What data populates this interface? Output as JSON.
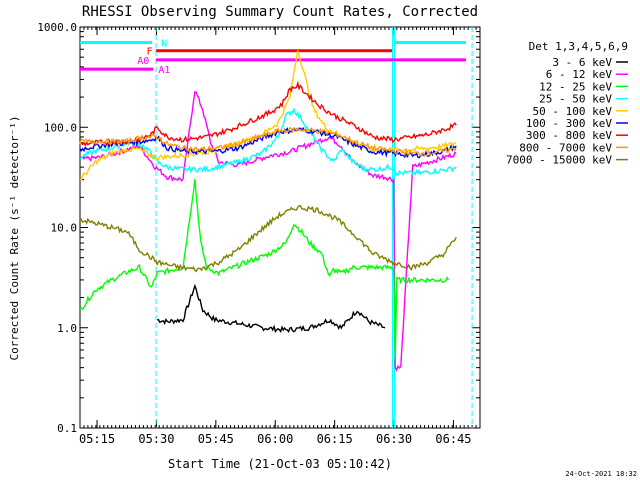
{
  "chart_data": {
    "type": "line",
    "title": "RHESSI Observing Summary Count Rates, Corrected",
    "xlabel": "Start Time (21-Oct-03 05:10:42)",
    "ylabel": "Corrected Count Rate (s⁻¹ detector⁻¹)",
    "y_scale": "log",
    "ylim": [
      0.1,
      1000
    ],
    "xlim_minutes_after_start": [
      0,
      101
    ],
    "x_ticks": [
      {
        "label": "05:15",
        "min": 4.3
      },
      {
        "label": "05:30",
        "min": 19.3
      },
      {
        "label": "05:45",
        "min": 34.3
      },
      {
        "label": "06:00",
        "min": 49.3
      },
      {
        "label": "06:15",
        "min": 64.3
      },
      {
        "label": "06:30",
        "min": 79.3
      },
      {
        "label": "06:45",
        "min": 94.3
      }
    ],
    "y_ticks": [
      {
        "label": "1000.0",
        "v": 1000
      },
      {
        "label": "100.0",
        "v": 100
      },
      {
        "label": "10.0",
        "v": 10
      },
      {
        "label": "1.0",
        "v": 1
      },
      {
        "label": "0.1",
        "v": 0.1
      }
    ],
    "legend_title": "Det 1,3,4,5,6,9",
    "series": [
      {
        "name": "3 - 6 keV",
        "color": "#000000",
        "points": [
          [
            19.5,
            1.2
          ],
          [
            22,
            1.15
          ],
          [
            26,
            1.2
          ],
          [
            29,
            2.6
          ],
          [
            31,
            1.5
          ],
          [
            34,
            1.2
          ],
          [
            40,
            1.1
          ],
          [
            46,
            1.0
          ],
          [
            52,
            0.95
          ],
          [
            58,
            1.0
          ],
          [
            63,
            1.2
          ],
          [
            66,
            1.0
          ],
          [
            70,
            1.5
          ],
          [
            73,
            1.15
          ],
          [
            77,
            1.0
          ]
        ]
      },
      {
        "name": "6 - 12 keV",
        "color": "#ff00ff",
        "points": [
          [
            0,
            48
          ],
          [
            5,
            50
          ],
          [
            9,
            55
          ],
          [
            12,
            60
          ],
          [
            15,
            65
          ],
          [
            19,
            40
          ],
          [
            22,
            32
          ],
          [
            26,
            30
          ],
          [
            29,
            235
          ],
          [
            31,
            150
          ],
          [
            33,
            70
          ],
          [
            35,
            45
          ],
          [
            40,
            42
          ],
          [
            48,
            52
          ],
          [
            53,
            57
          ],
          [
            59,
            70
          ],
          [
            63,
            80
          ],
          [
            66,
            65
          ],
          [
            69,
            45
          ],
          [
            71,
            40
          ],
          [
            74,
            33
          ],
          [
            77,
            32
          ],
          [
            79.2,
            30
          ],
          [
            79.6,
            0.4
          ],
          [
            81,
            0.4
          ],
          [
            84,
            40
          ],
          [
            88,
            45
          ],
          [
            92,
            50
          ],
          [
            95,
            55
          ]
        ]
      },
      {
        "name": "12 - 25 keV",
        "color": "#00ff00",
        "points": [
          [
            0,
            1.5
          ],
          [
            4,
            2.4
          ],
          [
            8,
            3.0
          ],
          [
            12,
            3.6
          ],
          [
            15,
            4.0
          ],
          [
            18,
            2.5
          ],
          [
            19.5,
            3.5
          ],
          [
            26,
            4.0
          ],
          [
            29,
            30
          ],
          [
            30.5,
            7
          ],
          [
            32,
            4
          ],
          [
            35,
            3.5
          ],
          [
            42,
            4.5
          ],
          [
            48,
            5.5
          ],
          [
            52,
            7
          ],
          [
            54,
            11
          ],
          [
            56,
            9
          ],
          [
            58,
            7
          ],
          [
            61,
            5.5
          ],
          [
            63,
            3.2
          ],
          [
            64,
            3.8
          ],
          [
            66,
            3.5
          ],
          [
            69,
            4
          ],
          [
            72,
            4
          ],
          [
            75,
            4
          ],
          [
            78,
            4
          ],
          [
            79.2,
            4
          ],
          [
            79.6,
            0.5
          ],
          [
            80,
            3
          ],
          [
            86,
            3
          ],
          [
            93,
            3
          ]
        ]
      },
      {
        "name": "25 - 50 keV",
        "color": "#00ffff",
        "points": [
          [
            0,
            50
          ],
          [
            4,
            58
          ],
          [
            8,
            62
          ],
          [
            12,
            70
          ],
          [
            15,
            70
          ],
          [
            18,
            55
          ],
          [
            19.5,
            45
          ],
          [
            22,
            40
          ],
          [
            26,
            38
          ],
          [
            32,
            38
          ],
          [
            40,
            45
          ],
          [
            46,
            55
          ],
          [
            50,
            80
          ],
          [
            52,
            130
          ],
          [
            54,
            150
          ],
          [
            56,
            120
          ],
          [
            58,
            90
          ],
          [
            61,
            60
          ],
          [
            64,
            45
          ],
          [
            66,
            60
          ],
          [
            69,
            45
          ],
          [
            72,
            38
          ],
          [
            75,
            38
          ],
          [
            78,
            40
          ],
          [
            79,
            40
          ],
          [
            80,
            35
          ],
          [
            86,
            35
          ],
          [
            93,
            38
          ],
          [
            95,
            40
          ]
        ]
      },
      {
        "name": "50 - 100 keV",
        "color": "#ffcc00",
        "points": [
          [
            0,
            30
          ],
          [
            4,
            45
          ],
          [
            8,
            55
          ],
          [
            12,
            60
          ],
          [
            15,
            60
          ],
          [
            18,
            52
          ],
          [
            19.5,
            50
          ],
          [
            25,
            52
          ],
          [
            30,
            55
          ],
          [
            35,
            60
          ],
          [
            40,
            70
          ],
          [
            45,
            80
          ],
          [
            50,
            110
          ],
          [
            53,
            200
          ],
          [
            55,
            600
          ],
          [
            57,
            300
          ],
          [
            59,
            150
          ],
          [
            62,
            100
          ],
          [
            66,
            80
          ],
          [
            70,
            65
          ],
          [
            74,
            60
          ],
          [
            79,
            60
          ],
          [
            84,
            60
          ],
          [
            88,
            62
          ],
          [
            92,
            65
          ],
          [
            95,
            70
          ]
        ]
      },
      {
        "name": "100 - 300 keV",
        "color": "#0000ff",
        "points": [
          [
            0,
            60
          ],
          [
            4,
            65
          ],
          [
            8,
            68
          ],
          [
            12,
            70
          ],
          [
            15,
            72
          ],
          [
            18,
            75
          ],
          [
            19.5,
            80
          ],
          [
            22,
            62
          ],
          [
            26,
            58
          ],
          [
            30,
            57
          ],
          [
            35,
            58
          ],
          [
            40,
            62
          ],
          [
            45,
            75
          ],
          [
            50,
            90
          ],
          [
            55,
            95
          ],
          [
            60,
            90
          ],
          [
            65,
            80
          ],
          [
            70,
            65
          ],
          [
            74,
            57
          ],
          [
            79,
            55
          ],
          [
            84,
            52
          ],
          [
            88,
            54
          ],
          [
            92,
            58
          ],
          [
            95,
            65
          ]
        ]
      },
      {
        "name": "300 - 800 keV",
        "color": "#ff0000",
        "points": [
          [
            0,
            68
          ],
          [
            4,
            70
          ],
          [
            8,
            72
          ],
          [
            12,
            72
          ],
          [
            15,
            75
          ],
          [
            18,
            85
          ],
          [
            19.5,
            100
          ],
          [
            22,
            80
          ],
          [
            26,
            75
          ],
          [
            32,
            80
          ],
          [
            38,
            95
          ],
          [
            44,
            120
          ],
          [
            48,
            140
          ],
          [
            51,
            170
          ],
          [
            53,
            240
          ],
          [
            55,
            260
          ],
          [
            57,
            220
          ],
          [
            60,
            170
          ],
          [
            63,
            140
          ],
          [
            66,
            120
          ],
          [
            70,
            100
          ],
          [
            74,
            80
          ],
          [
            79,
            75
          ],
          [
            84,
            80
          ],
          [
            88,
            85
          ],
          [
            92,
            95
          ],
          [
            95,
            105
          ]
        ]
      },
      {
        "name": "800 - 7000 keV",
        "color": "#ff9900",
        "points": [
          [
            0,
            72
          ],
          [
            4,
            72
          ],
          [
            8,
            72
          ],
          [
            12,
            72
          ],
          [
            15,
            78
          ],
          [
            18,
            80
          ],
          [
            19.5,
            80
          ],
          [
            22,
            68
          ],
          [
            26,
            62
          ],
          [
            30,
            60
          ],
          [
            35,
            62
          ],
          [
            40,
            68
          ],
          [
            45,
            80
          ],
          [
            50,
            92
          ],
          [
            55,
            95
          ],
          [
            60,
            92
          ],
          [
            65,
            85
          ],
          [
            70,
            70
          ],
          [
            74,
            62
          ],
          [
            79,
            58
          ],
          [
            84,
            55
          ],
          [
            88,
            55
          ],
          [
            92,
            58
          ],
          [
            95,
            62
          ]
        ]
      },
      {
        "name": "7000 - 15000 keV",
        "color": "#808000",
        "points": [
          [
            0,
            12
          ],
          [
            4,
            11
          ],
          [
            8,
            10
          ],
          [
            12,
            9
          ],
          [
            15,
            6
          ],
          [
            18,
            5
          ],
          [
            19.5,
            4.5
          ],
          [
            25,
            4.0
          ],
          [
            30,
            3.8
          ],
          [
            35,
            4.5
          ],
          [
            40,
            6
          ],
          [
            45,
            9
          ],
          [
            50,
            13
          ],
          [
            55,
            16
          ],
          [
            60,
            15
          ],
          [
            65,
            12
          ],
          [
            70,
            8
          ],
          [
            74,
            5.5
          ],
          [
            79,
            4.5
          ],
          [
            84,
            4.0
          ],
          [
            88,
            4.5
          ],
          [
            92,
            5.5
          ],
          [
            95,
            8
          ]
        ]
      }
    ],
    "annotations": [
      {
        "label": "N",
        "color": "#00ffff",
        "value": 700
      },
      {
        "label": "F",
        "color": "#ff0000",
        "value": 580
      },
      {
        "label": "A0",
        "color": "#ff00ff",
        "value": 470
      },
      {
        "label": "A1",
        "color": "#ff00ff",
        "value": 380
      }
    ],
    "footer_date": "24-Oct-2021 18:32",
    "legend_position": "right"
  }
}
